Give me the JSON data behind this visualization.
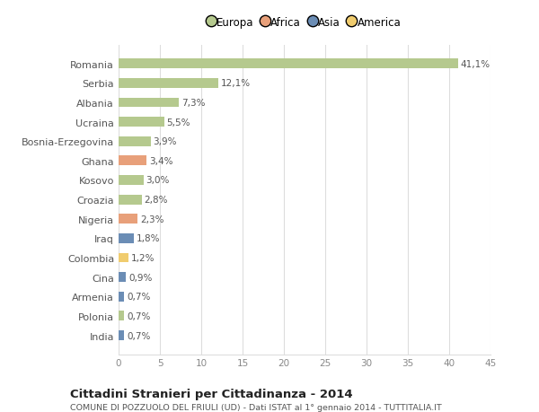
{
  "categories": [
    "Romania",
    "Serbia",
    "Albania",
    "Ucraina",
    "Bosnia-Erzegovina",
    "Ghana",
    "Kosovo",
    "Croazia",
    "Nigeria",
    "Iraq",
    "Colombia",
    "Cina",
    "Armenia",
    "Polonia",
    "India"
  ],
  "values": [
    41.1,
    12.1,
    7.3,
    5.5,
    3.9,
    3.4,
    3.0,
    2.8,
    2.3,
    1.8,
    1.2,
    0.9,
    0.7,
    0.7,
    0.7
  ],
  "labels": [
    "41,1%",
    "12,1%",
    "7,3%",
    "5,5%",
    "3,9%",
    "3,4%",
    "3,0%",
    "2,8%",
    "2,3%",
    "1,8%",
    "1,2%",
    "0,9%",
    "0,7%",
    "0,7%",
    "0,7%"
  ],
  "continent": [
    "Europa",
    "Europa",
    "Europa",
    "Europa",
    "Europa",
    "Africa",
    "Europa",
    "Europa",
    "Africa",
    "Asia",
    "America",
    "Asia",
    "Asia",
    "Europa",
    "Asia"
  ],
  "colors": {
    "Europa": "#b5c98e",
    "Africa": "#e8a07a",
    "Asia": "#6b8db5",
    "America": "#f0cc6e"
  },
  "title": "Cittadini Stranieri per Cittadinanza - 2014",
  "subtitle": "COMUNE DI POZZUOLO DEL FRIULI (UD) - Dati ISTAT al 1° gennaio 2014 - TUTTITALIA.IT",
  "xlim": [
    0,
    45
  ],
  "xticks": [
    0,
    5,
    10,
    15,
    20,
    25,
    30,
    35,
    40,
    45
  ],
  "background_color": "#ffffff",
  "grid_color": "#dddddd",
  "bar_height": 0.5,
  "label_fontsize": 7.5,
  "ytick_fontsize": 8,
  "xtick_fontsize": 7.5,
  "legend_order": [
    "Europa",
    "Africa",
    "Asia",
    "America"
  ]
}
